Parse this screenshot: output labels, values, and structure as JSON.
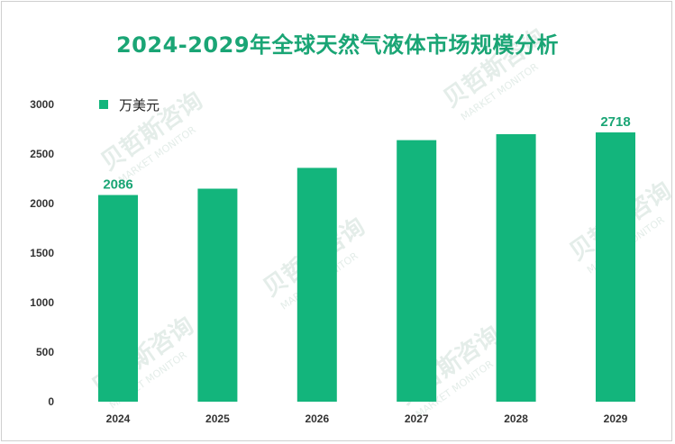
{
  "chart_data": {
    "type": "bar",
    "title": "2024-2029年全球天然气液体市场规模分析",
    "categories": [
      "2024",
      "2025",
      "2026",
      "2027",
      "2028",
      "2029"
    ],
    "series": [
      {
        "name": "万美元",
        "values": [
          2086,
          2150,
          2360,
          2640,
          2700,
          2718
        ]
      }
    ],
    "data_labels": [
      {
        "category": "2024",
        "text": "2086"
      },
      {
        "category": "2029",
        "text": "2718"
      }
    ],
    "ylim": [
      0,
      3000
    ],
    "yticks": [
      0,
      500,
      1000,
      1500,
      2000,
      2500,
      3000
    ],
    "xlabel": "",
    "ylabel": "",
    "grid": false,
    "legend": "top-left"
  },
  "watermark": {
    "name": "贝哲斯咨询",
    "subtitle": "MARKET MONITOR"
  },
  "colors": {
    "bar": "#13b57c",
    "title": "#1aa575",
    "label": "#1aa575"
  }
}
